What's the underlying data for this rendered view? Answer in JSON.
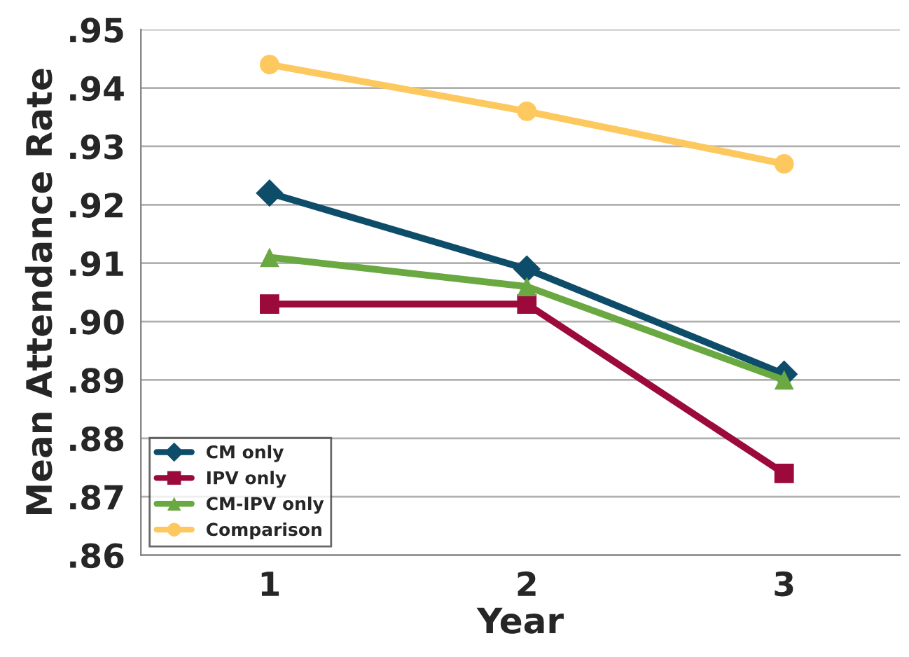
{
  "chart_data": {
    "type": "line",
    "xlabel": "Year",
    "ylabel": "Mean Attendance Rate",
    "x": [
      1,
      2,
      3
    ],
    "xlim": [
      0.5,
      3.45
    ],
    "xticks": [
      1,
      2,
      3
    ],
    "series": [
      {
        "name": "CM only",
        "color": "#0e4d6a",
        "marker": "diamond",
        "values": [
          0.922,
          0.909,
          0.891
        ]
      },
      {
        "name": "IPV only",
        "color": "#9b0a3a",
        "marker": "square",
        "values": [
          0.903,
          0.903,
          0.874
        ]
      },
      {
        "name": "CM-IPV only",
        "color": "#6aa842",
        "marker": "triangle",
        "values": [
          0.911,
          0.906,
          0.89
        ]
      },
      {
        "name": "Comparison",
        "color": "#fdc85e",
        "marker": "circle",
        "values": [
          0.944,
          0.936,
          0.927
        ]
      }
    ],
    "ylim": [
      0.86,
      0.95
    ],
    "yticks": [
      {
        "value": 0.86,
        "label": ".86"
      },
      {
        "value": 0.87,
        "label": ".87"
      },
      {
        "value": 0.88,
        "label": ".88"
      },
      {
        "value": 0.89,
        "label": ".89"
      },
      {
        "value": 0.9,
        "label": ".90"
      },
      {
        "value": 0.91,
        "label": ".91"
      },
      {
        "value": 0.92,
        "label": ".92"
      },
      {
        "value": 0.93,
        "label": ".93"
      },
      {
        "value": 0.94,
        "label": ".94"
      },
      {
        "value": 0.95,
        "label": ".95"
      }
    ],
    "grid": "y",
    "legend": "bottom left",
    "line_style": "solid"
  }
}
